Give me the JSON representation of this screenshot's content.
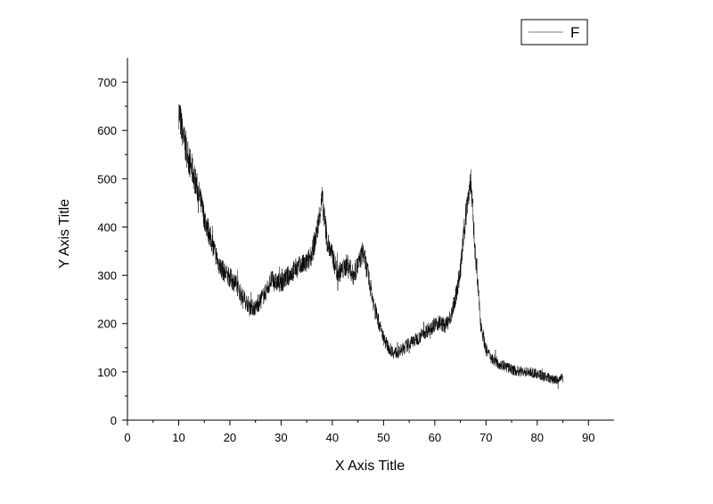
{
  "chart_data": {
    "type": "line",
    "xlabel": "X Axis Title",
    "ylabel": "Y Axis Title",
    "xlim": [
      0,
      95
    ],
    "ylim": [
      0,
      750
    ],
    "x_ticks": [
      0,
      10,
      20,
      30,
      40,
      50,
      60,
      70,
      80,
      90
    ],
    "y_ticks": [
      0,
      100,
      200,
      300,
      400,
      500,
      600,
      700
    ],
    "x_minor_step": 5,
    "y_minor_step": 50,
    "grid": false,
    "legend": {
      "position": "top-right",
      "entries": [
        "F"
      ]
    },
    "series": [
      {
        "name": "F",
        "color": "#000000",
        "x": [
          10,
          11,
          12,
          13,
          14,
          15,
          16,
          17,
          18,
          19,
          20,
          21,
          22,
          23,
          24,
          25,
          26,
          27,
          28,
          29,
          30,
          31,
          32,
          33,
          34,
          35,
          36,
          37,
          38,
          39,
          40,
          41,
          42,
          43,
          44,
          45,
          46,
          47,
          48,
          49,
          50,
          51,
          52,
          53,
          54,
          55,
          56,
          57,
          58,
          59,
          60,
          61,
          62,
          63,
          64,
          65,
          66,
          67,
          68,
          69,
          70,
          71,
          72,
          73,
          74,
          75,
          76,
          77,
          78,
          79,
          80,
          81,
          82,
          83,
          84,
          85
        ],
        "y": [
          640,
          580,
          540,
          505,
          465,
          420,
          385,
          350,
          320,
          305,
          295,
          285,
          265,
          248,
          235,
          232,
          248,
          265,
          290,
          285,
          285,
          295,
          305,
          315,
          320,
          325,
          345,
          390,
          460,
          370,
          340,
          305,
          310,
          325,
          300,
          320,
          350,
          300,
          245,
          205,
          170,
          150,
          140,
          140,
          150,
          158,
          165,
          172,
          182,
          190,
          198,
          202,
          195,
          210,
          250,
          310,
          420,
          500,
          330,
          200,
          145,
          130,
          120,
          115,
          110,
          105,
          102,
          100,
          100,
          98,
          95,
          92,
          88,
          85,
          82,
          88
        ]
      }
    ]
  }
}
